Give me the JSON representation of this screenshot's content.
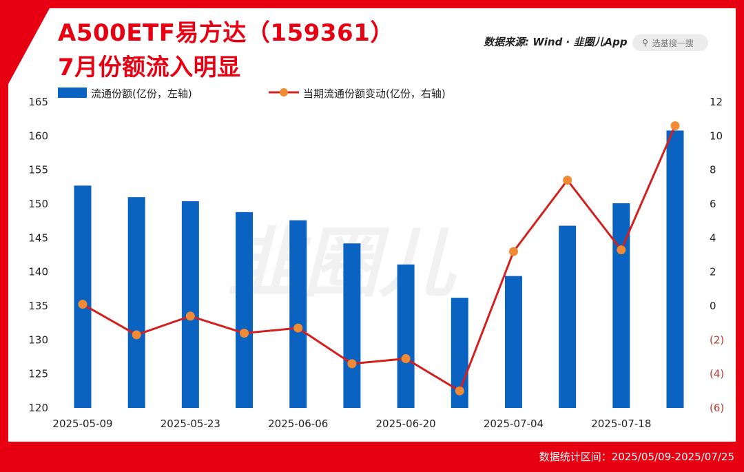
{
  "header": {
    "title_line1": "A500ETF易方达（159361）",
    "title_line2": "7月份额流入明显",
    "source_prefix": "数据来源: Wind · ",
    "source_brand": "韭圈儿App",
    "search_placeholder": "选基搜一搜",
    "search_icon": "search-icon"
  },
  "watermark": "韭圈儿",
  "footer": {
    "text": "数据统计区间：2025/05/09-2025/07/25"
  },
  "colors": {
    "frame": "#e60012",
    "bar": "#0a63c0",
    "line": "#d2201e",
    "marker": "#f08a35",
    "negative_tick": "#c0392b"
  },
  "chart_data": {
    "type": "bar",
    "categories": [
      "2025-05-09",
      "2025-05-16",
      "2025-05-23",
      "2025-05-30",
      "2025-06-06",
      "2025-06-13",
      "2025-06-20",
      "2025-06-27",
      "2025-07-04",
      "2025-07-11",
      "2025-07-18",
      "2025-07-25"
    ],
    "x_tick_labels": [
      "2025-05-09",
      "",
      "2025-05-23",
      "",
      "2025-06-06",
      "",
      "2025-06-20",
      "",
      "2025-07-04",
      "",
      "2025-07-18",
      ""
    ],
    "series": [
      {
        "name": "流通份额(亿份，左轴)",
        "type": "bar",
        "axis": "left",
        "values": [
          152.7,
          151.0,
          150.4,
          148.8,
          147.6,
          144.2,
          141.1,
          136.2,
          139.4,
          146.8,
          150.1,
          160.8
        ]
      },
      {
        "name": "当期流通份额变动(亿份，右轴)",
        "type": "line",
        "axis": "right",
        "values": [
          0.1,
          -1.7,
          -0.6,
          -1.6,
          -1.3,
          -3.4,
          -3.1,
          -5.0,
          3.2,
          7.4,
          3.3,
          10.6
        ]
      }
    ],
    "y_left": {
      "range": [
        120,
        165
      ],
      "ticks": [
        "120",
        "125",
        "130",
        "135",
        "140",
        "145",
        "150",
        "155",
        "160",
        "165"
      ],
      "tick_values": [
        120,
        125,
        130,
        135,
        140,
        145,
        150,
        155,
        160,
        165
      ]
    },
    "y_right": {
      "range": [
        -6,
        12
      ],
      "ticks": [
        "(6)",
        "(4)",
        "(2)",
        "0",
        "2",
        "4",
        "6",
        "8",
        "10",
        "12"
      ],
      "tick_values": [
        -6,
        -4,
        -2,
        0,
        2,
        4,
        6,
        8,
        10,
        12
      ]
    },
    "legend_position": "top-left",
    "grid": false
  }
}
